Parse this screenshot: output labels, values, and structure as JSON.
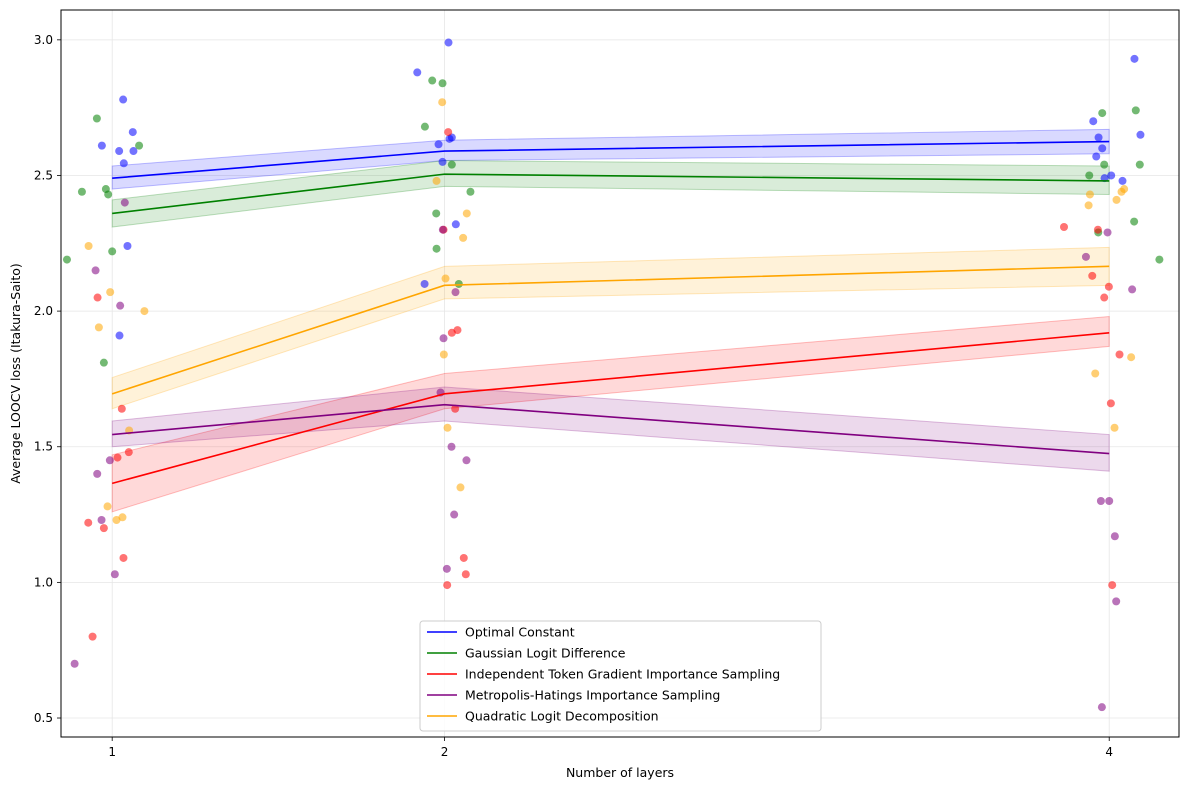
{
  "chart_data": {
    "type": "line",
    "xlabel": "Number of layers",
    "ylabel": "Average LOOCV loss (Itakura-Saito)",
    "categories": [
      "1",
      "2",
      "4"
    ],
    "ylim": [
      0.43,
      3.11
    ],
    "yticks": [
      0.5,
      1.0,
      1.5,
      2.0,
      2.5,
      3.0
    ],
    "grid": true,
    "legend_position": "bottom-center",
    "series": [
      {
        "name": "Optimal Constant",
        "color": "#0000ff",
        "values": [
          2.49,
          2.59,
          2.625
        ],
        "band_lower": [
          2.45,
          2.555,
          2.58
        ],
        "band_upper": [
          2.535,
          2.63,
          2.67
        ],
        "points": [
          {
            "x": 0.969,
            "y": 2.61
          },
          {
            "x": 1.021,
            "y": 2.59
          },
          {
            "x": 1.033,
            "y": 2.78
          },
          {
            "x": 1.035,
            "y": 2.545
          },
          {
            "x": 1.046,
            "y": 2.24
          },
          {
            "x": 1.062,
            "y": 2.66
          },
          {
            "x": 1.064,
            "y": 2.59
          },
          {
            "x": 1.022,
            "y": 1.91
          },
          {
            "x": 1.918,
            "y": 2.88
          },
          {
            "x": 1.982,
            "y": 2.615
          },
          {
            "x": 1.994,
            "y": 2.55
          },
          {
            "x": 2.012,
            "y": 2.99
          },
          {
            "x": 2.015,
            "y": 2.635
          },
          {
            "x": 2.022,
            "y": 2.64
          },
          {
            "x": 2.034,
            "y": 2.32
          },
          {
            "x": 1.94,
            "y": 2.1
          },
          {
            "x": 3.952,
            "y": 2.7
          },
          {
            "x": 3.961,
            "y": 2.57
          },
          {
            "x": 3.968,
            "y": 2.64
          },
          {
            "x": 3.979,
            "y": 2.6
          },
          {
            "x": 3.986,
            "y": 2.49
          },
          {
            "x": 4.006,
            "y": 2.5
          },
          {
            "x": 4.04,
            "y": 2.48
          },
          {
            "x": 4.076,
            "y": 2.93
          },
          {
            "x": 4.094,
            "y": 2.65
          }
        ]
      },
      {
        "name": "Gaussian Logit Difference",
        "color": "#008000",
        "values": [
          2.36,
          2.505,
          2.48
        ],
        "band_lower": [
          2.31,
          2.46,
          2.43
        ],
        "band_upper": [
          2.41,
          2.555,
          2.535
        ],
        "points": [
          {
            "x": 0.864,
            "y": 2.19
          },
          {
            "x": 0.909,
            "y": 2.44
          },
          {
            "x": 0.954,
            "y": 2.71
          },
          {
            "x": 0.975,
            "y": 1.81
          },
          {
            "x": 0.981,
            "y": 2.45
          },
          {
            "x": 0.988,
            "y": 2.43
          },
          {
            "x": 1.0,
            "y": 2.22
          },
          {
            "x": 1.081,
            "y": 2.61
          },
          {
            "x": 1.941,
            "y": 2.68
          },
          {
            "x": 1.963,
            "y": 2.85
          },
          {
            "x": 1.975,
            "y": 2.36
          },
          {
            "x": 1.976,
            "y": 2.23
          },
          {
            "x": 1.994,
            "y": 2.84
          },
          {
            "x": 2.022,
            "y": 2.54
          },
          {
            "x": 2.043,
            "y": 2.1
          },
          {
            "x": 2.078,
            "y": 2.44
          },
          {
            "x": 3.94,
            "y": 2.5
          },
          {
            "x": 3.967,
            "y": 2.29
          },
          {
            "x": 3.979,
            "y": 2.73
          },
          {
            "x": 3.985,
            "y": 2.54
          },
          {
            "x": 4.075,
            "y": 2.33
          },
          {
            "x": 4.08,
            "y": 2.74
          },
          {
            "x": 4.092,
            "y": 2.54
          },
          {
            "x": 4.151,
            "y": 2.19
          }
        ]
      },
      {
        "name": "Independent Token Gradient Importance Sampling",
        "color": "#ff0000",
        "values": [
          1.365,
          1.695,
          1.92
        ],
        "band_lower": [
          1.26,
          1.64,
          1.87
        ],
        "band_upper": [
          1.47,
          1.77,
          1.98
        ],
        "points": [
          {
            "x": 0.928,
            "y": 1.22
          },
          {
            "x": 0.941,
            "y": 0.8
          },
          {
            "x": 0.956,
            "y": 2.05
          },
          {
            "x": 0.975,
            "y": 1.2
          },
          {
            "x": 1.016,
            "y": 1.46
          },
          {
            "x": 1.029,
            "y": 1.64
          },
          {
            "x": 1.034,
            "y": 1.09
          },
          {
            "x": 1.05,
            "y": 1.48
          },
          {
            "x": 1.997,
            "y": 2.3
          },
          {
            "x": 2.008,
            "y": 0.99
          },
          {
            "x": 2.011,
            "y": 2.66
          },
          {
            "x": 2.022,
            "y": 1.92
          },
          {
            "x": 2.032,
            "y": 1.64
          },
          {
            "x": 2.039,
            "y": 1.93
          },
          {
            "x": 2.058,
            "y": 1.09
          },
          {
            "x": 2.064,
            "y": 1.03
          },
          {
            "x": 3.864,
            "y": 2.31
          },
          {
            "x": 3.949,
            "y": 2.13
          },
          {
            "x": 3.966,
            "y": 2.3
          },
          {
            "x": 3.985,
            "y": 2.05
          },
          {
            "x": 3.999,
            "y": 2.09
          },
          {
            "x": 4.005,
            "y": 1.66
          },
          {
            "x": 4.009,
            "y": 0.99
          },
          {
            "x": 4.031,
            "y": 1.84
          }
        ]
      },
      {
        "name": "Metropolis-Hatings Importance Sampling",
        "color": "#800080",
        "values": [
          1.545,
          1.655,
          1.475
        ],
        "band_lower": [
          1.5,
          1.595,
          1.41
        ],
        "band_upper": [
          1.595,
          1.72,
          1.545
        ],
        "points": [
          {
            "x": 0.887,
            "y": 0.7
          },
          {
            "x": 0.95,
            "y": 2.15
          },
          {
            "x": 0.955,
            "y": 1.4
          },
          {
            "x": 0.968,
            "y": 1.23
          },
          {
            "x": 0.993,
            "y": 1.45
          },
          {
            "x": 1.008,
            "y": 1.03
          },
          {
            "x": 1.024,
            "y": 2.02
          },
          {
            "x": 1.038,
            "y": 2.4
          },
          {
            "x": 1.988,
            "y": 1.7
          },
          {
            "x": 1.995,
            "y": 2.3
          },
          {
            "x": 1.997,
            "y": 1.9
          },
          {
            "x": 2.007,
            "y": 1.05
          },
          {
            "x": 2.021,
            "y": 1.5
          },
          {
            "x": 2.029,
            "y": 1.25
          },
          {
            "x": 2.033,
            "y": 2.07
          },
          {
            "x": 2.066,
            "y": 1.45
          },
          {
            "x": 3.93,
            "y": 2.2
          },
          {
            "x": 3.975,
            "y": 1.3
          },
          {
            "x": 3.978,
            "y": 0.54
          },
          {
            "x": 3.995,
            "y": 2.29
          },
          {
            "x": 4.0,
            "y": 1.3
          },
          {
            "x": 4.017,
            "y": 1.17
          },
          {
            "x": 4.021,
            "y": 0.93
          },
          {
            "x": 4.069,
            "y": 2.08
          }
        ]
      },
      {
        "name": "Quadratic Logit Decomposition",
        "color": "#ffa500",
        "values": [
          1.695,
          2.095,
          2.165
        ],
        "band_lower": [
          1.64,
          2.045,
          2.095
        ],
        "band_upper": [
          1.755,
          2.165,
          2.235
        ],
        "points": [
          {
            "x": 0.929,
            "y": 2.24
          },
          {
            "x": 0.96,
            "y": 1.94
          },
          {
            "x": 0.986,
            "y": 1.28
          },
          {
            "x": 0.994,
            "y": 2.07
          },
          {
            "x": 1.013,
            "y": 1.23
          },
          {
            "x": 1.031,
            "y": 1.24
          },
          {
            "x": 1.051,
            "y": 1.56
          },
          {
            "x": 1.097,
            "y": 2.0
          },
          {
            "x": 1.976,
            "y": 2.48
          },
          {
            "x": 1.993,
            "y": 2.77
          },
          {
            "x": 1.998,
            "y": 1.84
          },
          {
            "x": 2.003,
            "y": 2.12
          },
          {
            "x": 2.009,
            "y": 1.57
          },
          {
            "x": 2.048,
            "y": 1.35
          },
          {
            "x": 2.056,
            "y": 2.27
          },
          {
            "x": 2.067,
            "y": 2.36
          },
          {
            "x": 3.938,
            "y": 2.39
          },
          {
            "x": 3.942,
            "y": 2.43
          },
          {
            "x": 3.958,
            "y": 1.77
          },
          {
            "x": 4.016,
            "y": 1.57
          },
          {
            "x": 4.022,
            "y": 2.41
          },
          {
            "x": 4.037,
            "y": 2.44
          },
          {
            "x": 4.045,
            "y": 2.45
          },
          {
            "x": 4.066,
            "y": 1.83
          }
        ]
      }
    ]
  }
}
